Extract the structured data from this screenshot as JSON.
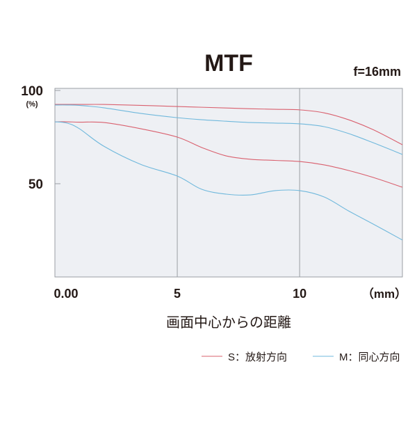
{
  "chart_data": {
    "type": "line",
    "title": "MTF",
    "subtitle": "f=16mm",
    "x_label": "画面中心からの距離",
    "x_unit": "（mm）",
    "y_unit": "(%)",
    "x": [
      0,
      0.5,
      1,
      2,
      3.5,
      5,
      6,
      7,
      8,
      9,
      10,
      11,
      12,
      13,
      14.2
    ],
    "xlim": [
      0,
      14.2
    ],
    "ylim": [
      0,
      100
    ],
    "xticks": [
      {
        "value": 0,
        "label": "0.00"
      },
      5,
      10
    ],
    "yticks": [
      50,
      100
    ],
    "grid": true,
    "series": [
      {
        "name": "S：放射方向",
        "color": "#d9606e",
        "lines": [
          [
            92.5,
            92.5,
            92.5,
            92.5,
            92,
            91.4,
            91,
            90.6,
            90.2,
            89.9,
            89.6,
            88,
            84.3,
            79,
            70.9
          ],
          [
            83.2,
            83.2,
            83,
            82.8,
            79.5,
            75,
            69.4,
            64.9,
            63.1,
            62.5,
            61.9,
            60.1,
            57.1,
            53.4,
            48.1
          ]
        ]
      },
      {
        "name": "M：同心方向",
        "color": "#6fb8dc",
        "lines": [
          [
            92.2,
            92.2,
            92,
            90.7,
            87.7,
            85.4,
            84.3,
            83.5,
            82.8,
            82.5,
            82.1,
            80.6,
            76.9,
            72,
            65.7
          ],
          [
            83.2,
            82.5,
            79.5,
            70.1,
            60.4,
            54.1,
            47,
            44.4,
            44,
            46.3,
            46.3,
            42.9,
            35.4,
            28.4,
            19.8
          ]
        ]
      }
    ]
  }
}
